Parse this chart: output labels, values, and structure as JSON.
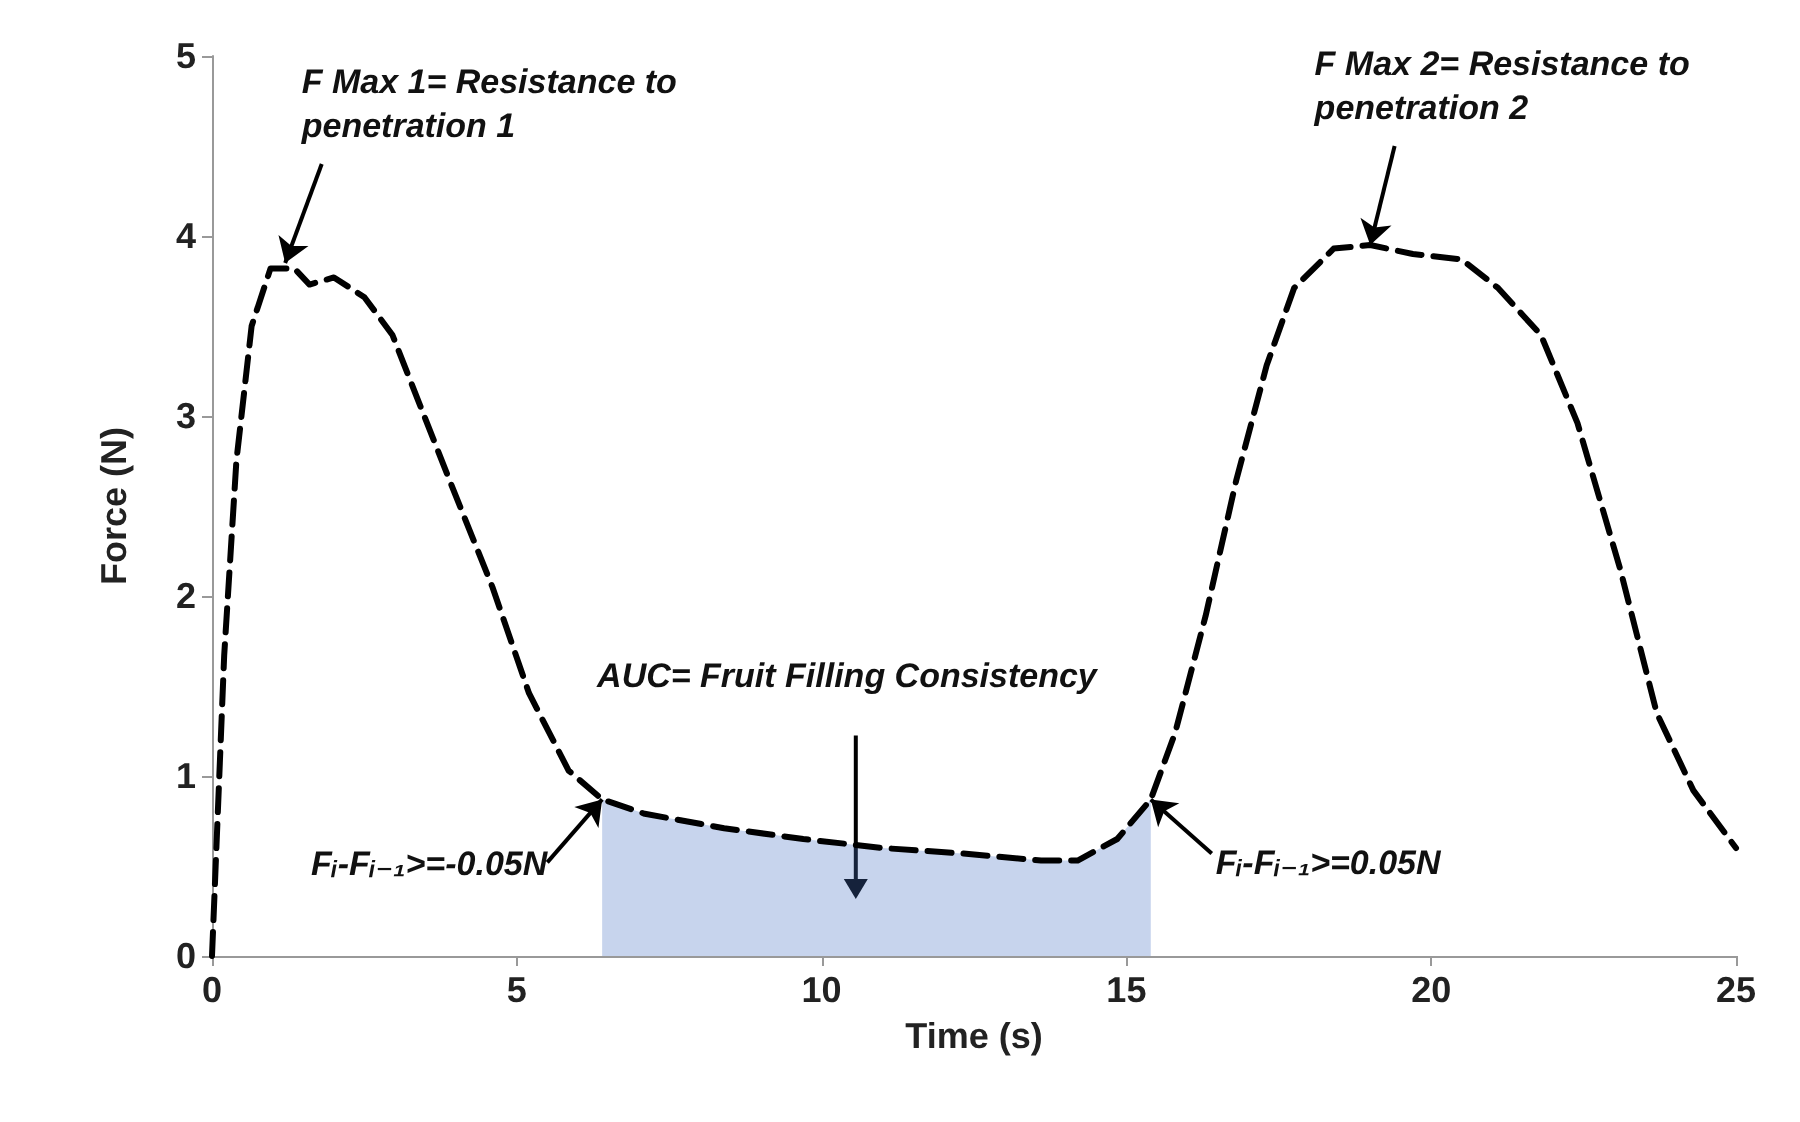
{
  "chart_data": {
    "type": "line",
    "xlabel": "Time (s)",
    "ylabel": "Force (N)",
    "xlim": [
      0,
      25
    ],
    "xticks": [
      0,
      5,
      10,
      15,
      20,
      25
    ],
    "ylim": [
      0,
      5
    ],
    "yticks": [
      0,
      1,
      2,
      3,
      4,
      5
    ],
    "grid": false,
    "line_style": "dashed",
    "marker": "none",
    "series": [
      {
        "color": "#000000",
        "x": [
          0,
          0.06,
          0.2,
          0.4,
          0.65,
          0.96,
          1.35,
          1.6,
          2.0,
          2.5,
          2.96,
          3.4,
          3.9,
          4.6,
          5.2,
          5.85,
          6.4,
          7.1,
          8.4,
          9.7,
          11,
          12.3,
          13.6,
          14.2,
          14.85,
          15.4,
          15.8,
          16.3,
          16.8,
          17.3,
          17.75,
          18.4,
          19,
          19.7,
          20.5,
          21.1,
          21.8,
          22.4,
          23.1,
          23.7,
          24.3,
          25
        ],
        "values": [
          0,
          0.5,
          1.67,
          2.75,
          3.5,
          3.82,
          3.82,
          3.73,
          3.77,
          3.66,
          3.45,
          3.07,
          2.64,
          2.05,
          1.46,
          1.03,
          0.87,
          0.79,
          0.71,
          0.65,
          0.6,
          0.57,
          0.53,
          0.53,
          0.65,
          0.87,
          1.24,
          1.89,
          2.64,
          3.28,
          3.71,
          3.93,
          3.95,
          3.9,
          3.87,
          3.71,
          3.45,
          2.96,
          2.15,
          1.35,
          0.92,
          0.6
        ]
      },
      {
        "type": "area",
        "color": "#4472c4",
        "x": [
          6.4,
          7.1,
          8.4,
          9.7,
          11,
          12.3,
          13.6,
          14.2,
          14.85,
          15.4
        ],
        "values": [
          0.87,
          0.79,
          0.71,
          0.65,
          0.6,
          0.57,
          0.53,
          0.53,
          0.65,
          0.87
        ]
      }
    ],
    "annotations": [
      {
        "text": "F Max 1= Resistance to penetration 1",
        "x": 1.2,
        "y": 3.85
      },
      {
        "text": "F Max 2= Resistance to penetration 2",
        "x": 19,
        "y": 3.95
      },
      "AUC= Fruit Filling Consistency",
      {
        "text": "Fᵢ-Fᵢ₋₁>=-0.05N",
        "x": 6.4,
        "y": 0.87
      },
      {
        "text": "Fᵢ-Fᵢ₋₁>=0.05N",
        "x": 15.4,
        "y": 0.87
      }
    ]
  }
}
